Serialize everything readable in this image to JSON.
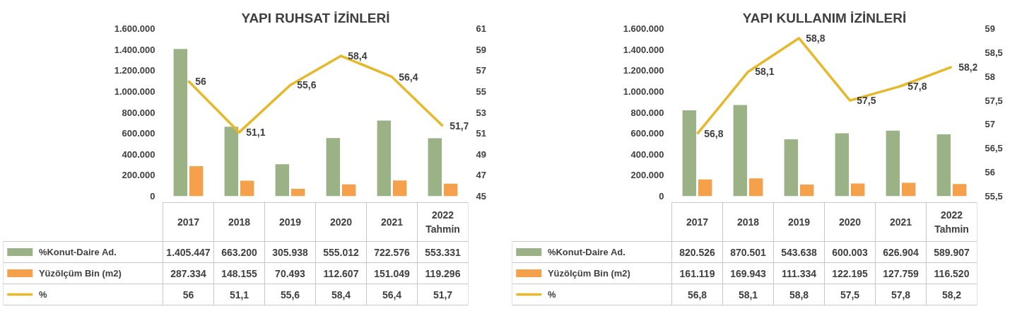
{
  "chart_data": [
    {
      "type": "bar",
      "title": "YAPI RUHSAT İZİNLERİ",
      "categories": [
        "2017",
        "2018",
        "2019",
        "2020",
        "2021",
        "2022\nTahmin"
      ],
      "series": [
        {
          "name": "%Konut-Daire Ad.",
          "color": "#9bb286",
          "values": [
            1405447,
            663200,
            305938,
            555012,
            722576,
            553331
          ],
          "value_labels": [
            "1.405.447",
            "663.200",
            "305.938",
            "555.012",
            "722.576",
            "553.331"
          ]
        },
        {
          "name": "Yüzölçüm Bin (m2)",
          "color": "#f5a04a",
          "values": [
            287334,
            148155,
            70493,
            112607,
            151049,
            119296
          ],
          "value_labels": [
            "287.334",
            "148.155",
            "70.493",
            "112.607",
            "151.049",
            "119.296"
          ]
        },
        {
          "name": "%",
          "type": "line",
          "axis": "y2",
          "color": "#e6b82a",
          "values": [
            56,
            51.1,
            55.6,
            58.4,
            56.4,
            51.7
          ],
          "value_labels": [
            "56",
            "51,1",
            "55,6",
            "58,4",
            "56,4",
            "51,7"
          ]
        }
      ],
      "ylim": [
        0,
        1600000
      ],
      "yticks": [
        {
          "value": 0,
          "label": "0"
        },
        {
          "value": 200000,
          "label": "200.000"
        },
        {
          "value": 400000,
          "label": "400.000"
        },
        {
          "value": 600000,
          "label": "600.000"
        },
        {
          "value": 800000,
          "label": "800.000"
        },
        {
          "value": 1000000,
          "label": "1.000.000"
        },
        {
          "value": 1200000,
          "label": "1.200.000"
        },
        {
          "value": 1400000,
          "label": "1.400.000"
        },
        {
          "value": 1600000,
          "label": "1.600.000"
        }
      ],
      "y2lim": [
        45,
        61
      ],
      "y2ticks": [
        {
          "value": 45,
          "label": "45"
        },
        {
          "value": 47,
          "label": "47"
        },
        {
          "value": 49,
          "label": "49"
        },
        {
          "value": 51,
          "label": "51"
        },
        {
          "value": 53,
          "label": "53"
        },
        {
          "value": 55,
          "label": "55"
        },
        {
          "value": 57,
          "label": "57"
        },
        {
          "value": 59,
          "label": "59"
        },
        {
          "value": 61,
          "label": "61"
        }
      ],
      "grid": false,
      "legend": "bottom",
      "line_style": "solid",
      "marker": "none"
    },
    {
      "type": "bar",
      "title": "YAPI KULLANIM İZİNLERİ",
      "categories": [
        "2017",
        "2018",
        "2019",
        "2020",
        "2021",
        "2022\nTahmin"
      ],
      "series": [
        {
          "name": "%Konut-Daire Ad.",
          "color": "#9bb286",
          "values": [
            820526,
            870501,
            543638,
            600003,
            626904,
            589907
          ],
          "value_labels": [
            "820.526",
            "870.501",
            "543.638",
            "600.003",
            "626.904",
            "589.907"
          ]
        },
        {
          "name": "Yüzölçüm Bin (m2)",
          "color": "#f5a04a",
          "values": [
            161119,
            169943,
            111334,
            122195,
            127759,
            116520
          ],
          "value_labels": [
            "161.119",
            "169.943",
            "111.334",
            "122.195",
            "127.759",
            "116.520"
          ]
        },
        {
          "name": "%",
          "type": "line",
          "axis": "y2",
          "color": "#e6b82a",
          "values": [
            56.8,
            58.1,
            58.8,
            57.5,
            57.8,
            58.2
          ],
          "value_labels": [
            "56,8",
            "58,1",
            "58,8",
            "57,5",
            "57,8",
            "58,2"
          ]
        }
      ],
      "ylim": [
        0,
        1600000
      ],
      "yticks": [
        {
          "value": 0,
          "label": "0"
        },
        {
          "value": 200000,
          "label": "200.000"
        },
        {
          "value": 400000,
          "label": "400.000"
        },
        {
          "value": 600000,
          "label": "600.000"
        },
        {
          "value": 800000,
          "label": "800.000"
        },
        {
          "value": 1000000,
          "label": "1.000.000"
        },
        {
          "value": 1200000,
          "label": "1.200.000"
        },
        {
          "value": 1400000,
          "label": "1.400.000"
        },
        {
          "value": 1600000,
          "label": "1.600.000"
        }
      ],
      "y2lim": [
        55.5,
        59
      ],
      "y2ticks": [
        {
          "value": 55.5,
          "label": "55,5"
        },
        {
          "value": 56,
          "label": "56"
        },
        {
          "value": 56.5,
          "label": "56,5"
        },
        {
          "value": 57,
          "label": "57"
        },
        {
          "value": 57.5,
          "label": "57,5"
        },
        {
          "value": 58,
          "label": "58"
        },
        {
          "value": 58.5,
          "label": "58,5"
        },
        {
          "value": 59,
          "label": "59"
        }
      ],
      "grid": false,
      "legend": "bottom",
      "line_style": "solid",
      "marker": "none"
    }
  ]
}
